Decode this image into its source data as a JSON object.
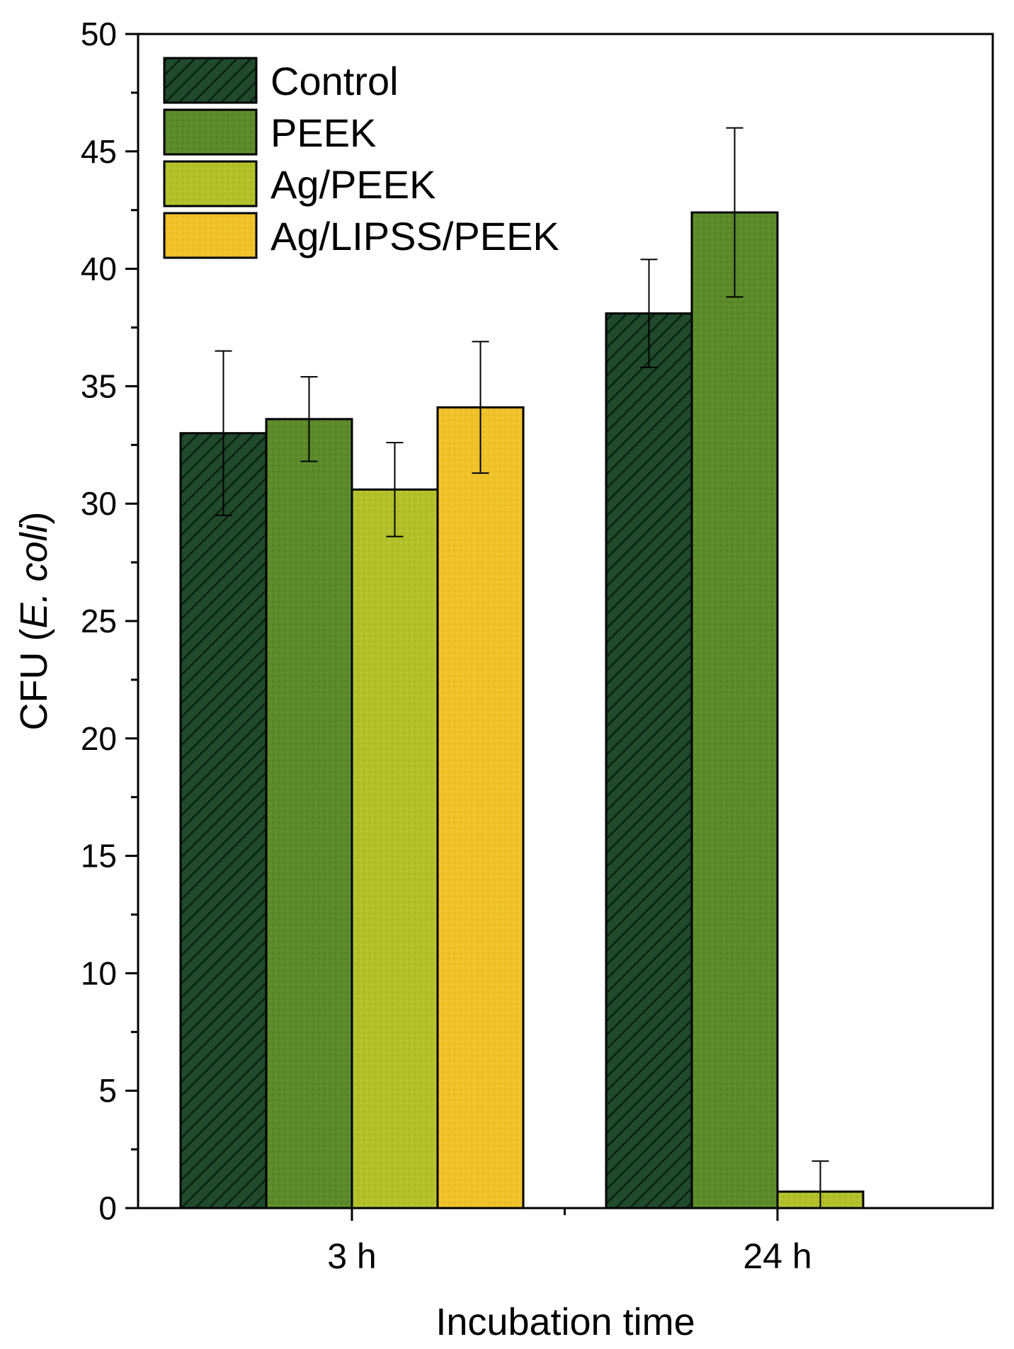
{
  "colors": {
    "control": "#1f4a2c",
    "peek": "#5c8a2a",
    "ag_peek": "#b2c12a",
    "ag_lipss_peek": "#f0c22a"
  },
  "chart_data": {
    "type": "bar",
    "xlabel": "Incubation time",
    "ylabel": {
      "prefix": "CFU (",
      "italic": "E. coli",
      "suffix": ")"
    },
    "ylim": [
      0,
      50
    ],
    "yticks": [
      0,
      5,
      10,
      15,
      20,
      25,
      30,
      35,
      40,
      45,
      50
    ],
    "categories": [
      "3 h",
      "24 h"
    ],
    "legend_position": "top-left",
    "series": [
      {
        "name": "Control",
        "values": [
          33.0,
          38.1
        ],
        "errors": [
          3.5,
          2.3
        ],
        "color": "#1f4a2c",
        "pattern": "hatch"
      },
      {
        "name": "PEEK",
        "values": [
          33.6,
          42.4
        ],
        "errors": [
          1.8,
          3.6
        ],
        "color": "#5c8a2a",
        "pattern": "dots"
      },
      {
        "name": "Ag/PEEK",
        "values": [
          30.6,
          0.7
        ],
        "errors": [
          2.0,
          1.3
        ],
        "color": "#b2c12a",
        "pattern": "dots"
      },
      {
        "name": "Ag/LIPSS/PEEK",
        "values": [
          34.1,
          0
        ],
        "errors": [
          2.8,
          0
        ],
        "color": "#f0c22a",
        "pattern": "dots"
      }
    ]
  }
}
